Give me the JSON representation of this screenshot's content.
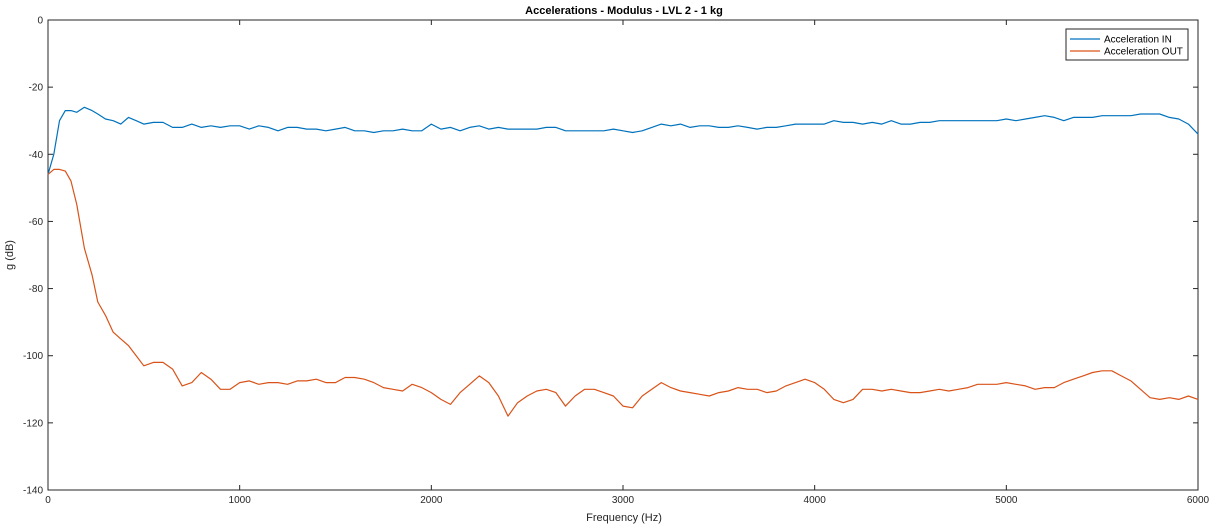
{
  "chart_data": {
    "type": "line",
    "title": "Accelerations - Modulus - LVL 2 - 1 kg",
    "xlabel": "Frequency (Hz)",
    "ylabel": "g (dB)",
    "xlim": [
      0,
      6000
    ],
    "ylim": [
      -140,
      0
    ],
    "xticks": [
      0,
      1000,
      2000,
      3000,
      4000,
      5000,
      6000
    ],
    "yticks": [
      0,
      -20,
      -40,
      -60,
      -80,
      -100,
      -120,
      -140
    ],
    "grid": false,
    "legend_position": "top-right",
    "series": [
      {
        "name": "Acceleration IN",
        "color": "#0072BD",
        "x": [
          0,
          30,
          60,
          90,
          120,
          150,
          190,
          230,
          260,
          300,
          340,
          380,
          420,
          460,
          500,
          550,
          600,
          650,
          700,
          750,
          800,
          850,
          900,
          950,
          1000,
          1050,
          1100,
          1150,
          1200,
          1250,
          1300,
          1350,
          1400,
          1450,
          1500,
          1550,
          1600,
          1650,
          1700,
          1750,
          1800,
          1850,
          1900,
          1950,
          2000,
          2050,
          2100,
          2150,
          2200,
          2250,
          2300,
          2350,
          2400,
          2450,
          2500,
          2550,
          2600,
          2650,
          2700,
          2750,
          2800,
          2850,
          2900,
          2950,
          3000,
          3050,
          3100,
          3150,
          3200,
          3250,
          3300,
          3350,
          3400,
          3450,
          3500,
          3550,
          3600,
          3650,
          3700,
          3750,
          3800,
          3850,
          3900,
          3950,
          4000,
          4050,
          4100,
          4150,
          4200,
          4250,
          4300,
          4350,
          4400,
          4450,
          4500,
          4550,
          4600,
          4650,
          4700,
          4750,
          4800,
          4850,
          4900,
          4950,
          5000,
          5050,
          5100,
          5150,
          5200,
          5250,
          5300,
          5350,
          5400,
          5450,
          5500,
          5550,
          5600,
          5650,
          5700,
          5750,
          5800,
          5850,
          5900,
          5950,
          6000
        ],
        "y": [
          -46,
          -40,
          -30,
          -27,
          -27,
          -27.5,
          -26,
          -27,
          -28,
          -29.5,
          -30,
          -31,
          -29,
          -30,
          -31,
          -30.5,
          -30.5,
          -32,
          -32,
          -31,
          -32,
          -31.5,
          -32,
          -31.5,
          -31.5,
          -32.5,
          -31.5,
          -32,
          -33,
          -32,
          -32,
          -32.5,
          -32.5,
          -33,
          -32.5,
          -32,
          -33,
          -33,
          -33.5,
          -33,
          -33,
          -32.5,
          -33,
          -33,
          -31,
          -32.5,
          -32,
          -33,
          -32,
          -31.5,
          -32.5,
          -32,
          -32.5,
          -32.5,
          -32.5,
          -32.5,
          -32,
          -32,
          -33,
          -33,
          -33,
          -33,
          -33,
          -32.5,
          -33,
          -33.5,
          -33,
          -32,
          -31,
          -31.5,
          -31,
          -32,
          -31.5,
          -31.5,
          -32,
          -32,
          -31.5,
          -32,
          -32.5,
          -32,
          -32,
          -31.5,
          -31,
          -31,
          -31,
          -31,
          -30,
          -30.5,
          -30.5,
          -31,
          -30.5,
          -31,
          -30,
          -31,
          -31,
          -30.5,
          -30.5,
          -30,
          -30,
          -30,
          -30,
          -30,
          -30,
          -30,
          -29.5,
          -30,
          -29.5,
          -29,
          -28.5,
          -29,
          -30,
          -29,
          -29,
          -29,
          -28.5,
          -28.5,
          -28.5,
          -28.5,
          -28,
          -28,
          -28,
          -29,
          -29.5,
          -31,
          -34
        ]
      },
      {
        "name": "Acceleration OUT",
        "color": "#D95319",
        "x": [
          0,
          30,
          60,
          90,
          120,
          150,
          190,
          230,
          260,
          300,
          340,
          380,
          420,
          460,
          500,
          550,
          600,
          650,
          700,
          750,
          800,
          850,
          900,
          950,
          1000,
          1050,
          1100,
          1150,
          1200,
          1250,
          1300,
          1350,
          1400,
          1450,
          1500,
          1550,
          1600,
          1650,
          1700,
          1750,
          1800,
          1850,
          1900,
          1950,
          2000,
          2050,
          2100,
          2150,
          2200,
          2250,
          2300,
          2350,
          2400,
          2450,
          2500,
          2550,
          2600,
          2650,
          2700,
          2750,
          2800,
          2850,
          2900,
          2950,
          3000,
          3050,
          3100,
          3150,
          3200,
          3250,
          3300,
          3350,
          3400,
          3450,
          3500,
          3550,
          3600,
          3650,
          3700,
          3750,
          3800,
          3850,
          3900,
          3950,
          4000,
          4050,
          4100,
          4150,
          4200,
          4250,
          4300,
          4350,
          4400,
          4450,
          4500,
          4550,
          4600,
          4650,
          4700,
          4750,
          4800,
          4850,
          4900,
          4950,
          5000,
          5050,
          5100,
          5150,
          5200,
          5250,
          5300,
          5350,
          5400,
          5450,
          5500,
          5550,
          5600,
          5650,
          5700,
          5750,
          5800,
          5850,
          5900,
          5950,
          6000
        ],
        "y": [
          -46,
          -44.5,
          -44.5,
          -45,
          -48,
          -55,
          -68,
          -76,
          -84,
          -88,
          -93,
          -95,
          -97,
          -100,
          -103,
          -102,
          -102,
          -104,
          -109,
          -108,
          -105,
          -107,
          -110,
          -110,
          -108,
          -107.5,
          -108.5,
          -108,
          -108,
          -108.5,
          -107.5,
          -107.5,
          -107,
          -108,
          -108,
          -106.5,
          -106.5,
          -107,
          -108,
          -109.5,
          -110,
          -110.5,
          -108.5,
          -109.5,
          -111,
          -113,
          -114.5,
          -111,
          -108.5,
          -106,
          -108,
          -112,
          -118,
          -114,
          -112,
          -110.5,
          -110,
          -111,
          -115,
          -112,
          -110,
          -110,
          -111,
          -112,
          -115,
          -115.5,
          -112,
          -110,
          -108,
          -109.5,
          -110.5,
          -111,
          -111.5,
          -112,
          -111,
          -110.5,
          -109.5,
          -110,
          -110,
          -111,
          -110.5,
          -109,
          -108,
          -107,
          -108,
          -110,
          -113,
          -114,
          -113,
          -110,
          -110,
          -110.5,
          -110,
          -110.5,
          -111,
          -111,
          -110.5,
          -110,
          -110.5,
          -110,
          -109.5,
          -108.5,
          -108.5,
          -108.5,
          -108,
          -108.5,
          -109,
          -110,
          -109.5,
          -109.5,
          -108,
          -107,
          -106,
          -105,
          -104.5,
          -104.5,
          -106,
          -107.5,
          -110,
          -112.5,
          -113,
          -112.5,
          -113,
          -112,
          -113
        ]
      }
    ]
  }
}
